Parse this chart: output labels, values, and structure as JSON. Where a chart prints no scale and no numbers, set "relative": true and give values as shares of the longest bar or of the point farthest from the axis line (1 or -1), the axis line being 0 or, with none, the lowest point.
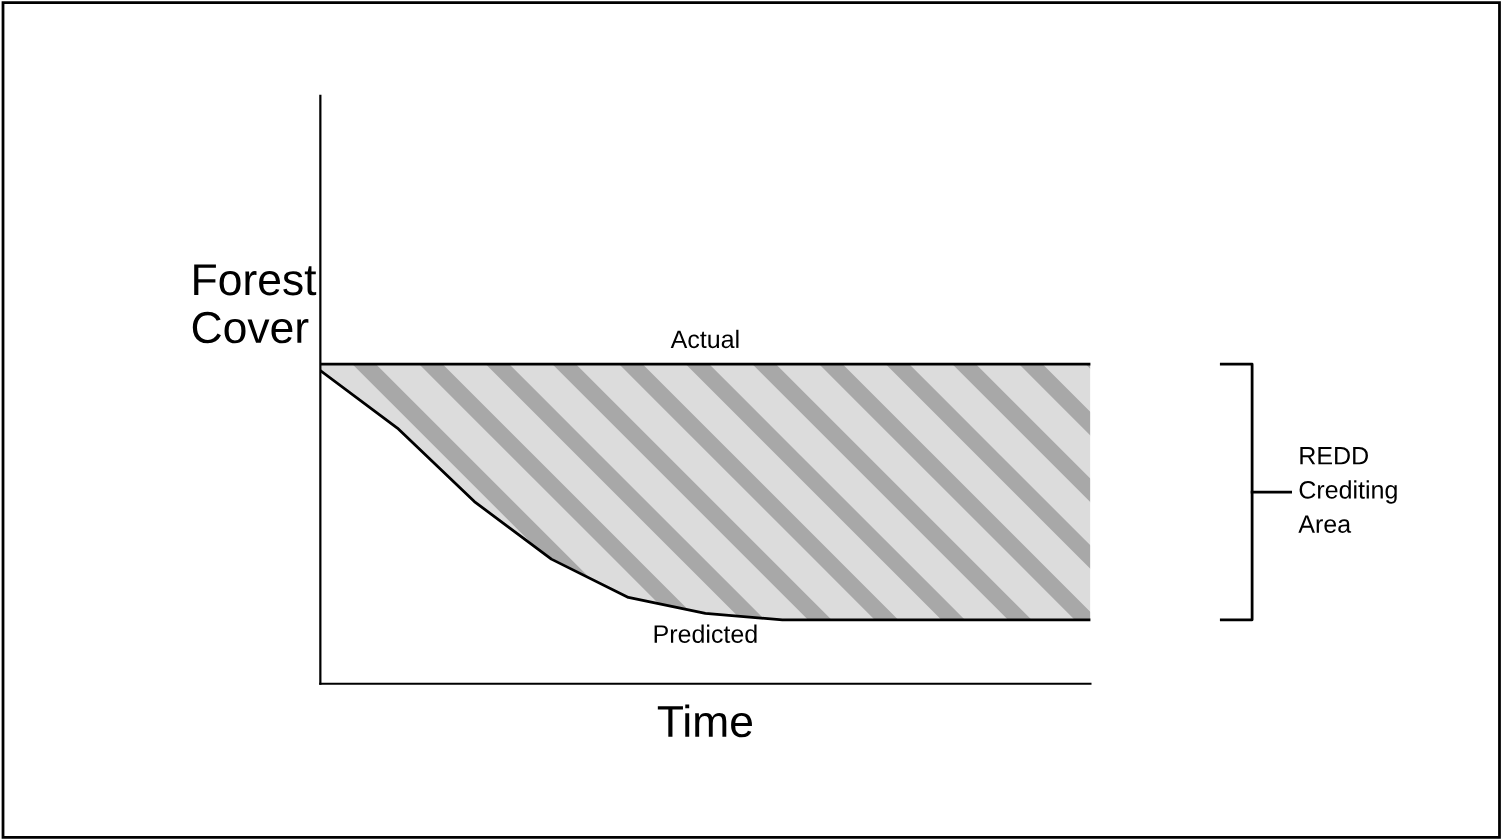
{
  "chart_data": {
    "type": "line",
    "relative": true,
    "xlabel": "Time",
    "ylabel": "Forest\nCover",
    "categories": [
      null,
      null,
      null,
      null,
      null,
      null,
      null,
      null,
      null,
      null,
      null
    ],
    "series": [
      {
        "name": "Actual",
        "color": "#000000",
        "values": [
          1,
          1,
          1,
          1,
          1,
          1,
          1,
          1,
          1,
          1,
          1
        ],
        "lower": [
          0.98,
          0.8,
          0.57,
          0.39,
          0.27,
          0.22,
          0.2,
          0.2,
          0.2,
          0.2,
          0.2
        ],
        "upper": [
          1,
          1,
          1,
          1,
          1,
          1,
          1,
          1,
          1,
          1,
          1
        ]
      },
      {
        "name": "Predicted",
        "color": "#000000",
        "values": [
          0.98,
          0.8,
          0.57,
          0.39,
          0.27,
          0.22,
          0.2,
          0.2,
          0.2,
          0.2,
          0.2
        ]
      }
    ],
    "annotations": [
      "REDD\nCrediting\nArea"
    ],
    "grid": false,
    "legend": false,
    "marker": "none",
    "line_style": "solid"
  }
}
